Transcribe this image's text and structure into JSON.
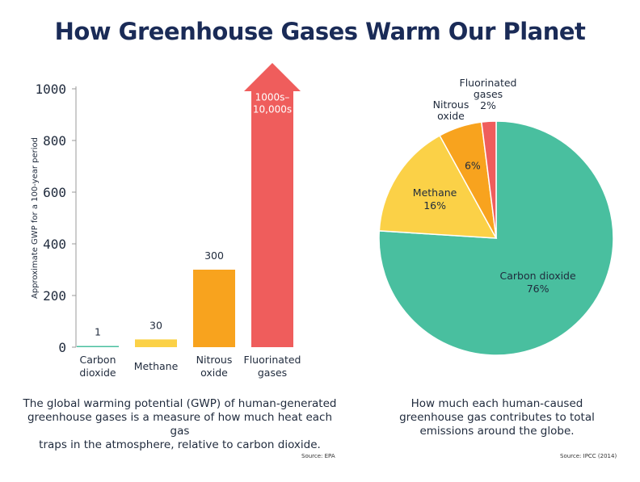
{
  "title": "How Greenhouse Gases Warm Our Planet",
  "colors": {
    "co2": "#49bf9f",
    "methane": "#fbd147",
    "nitrous": "#f8a31e",
    "fluorinated": "#ef5d5c",
    "axis": "#999999",
    "text": "#1f2a3c",
    "title": "#1a2b57"
  },
  "chart_data": [
    {
      "type": "bar",
      "ylabel": "Approximate GWP for a 100-year period",
      "xlabel": "",
      "ylim": [
        0,
        1000
      ],
      "yticks": [
        "0",
        "200",
        "400",
        "600",
        "800",
        "1000"
      ],
      "ytick_values": [
        0,
        200,
        400,
        600,
        800,
        1000
      ],
      "categories": [
        [
          "Carbon",
          "dioxide"
        ],
        [
          "Methane"
        ],
        [
          "Nitrous",
          "oxide"
        ],
        [
          "Fluorinated",
          "gases"
        ]
      ],
      "values": [
        1,
        30,
        300,
        1000
      ],
      "value_labels": [
        [
          "1"
        ],
        [
          "30"
        ],
        [
          "300"
        ],
        [
          "1000s–",
          "10,000s"
        ]
      ],
      "bar_colors": [
        "#49bf9f",
        "#fbd147",
        "#f8a31e",
        "#ef5d5c"
      ],
      "overflow_arrow_on_last": true,
      "caption": [
        "The global warming potential (GWP) of human-generated",
        "greenhouse gases is a measure of how much heat each gas",
        "traps in the atmosphere, relative to carbon dioxide."
      ],
      "source": "Source: EPA"
    },
    {
      "type": "pie",
      "slices": [
        {
          "name": "Carbon dioxide",
          "value": 76,
          "label": [
            "Carbon dioxide",
            "76%"
          ],
          "color": "#49bf9f"
        },
        {
          "name": "Methane",
          "value": 16,
          "label": [
            "Methane",
            "16%"
          ],
          "color": "#fbd147"
        },
        {
          "name": "Nitrous oxide",
          "value": 6,
          "label": [
            "6%"
          ],
          "outside_label": [
            "Nitrous",
            "oxide"
          ],
          "color": "#f8a31e"
        },
        {
          "name": "Fluorinated gases",
          "value": 2,
          "label": [],
          "outside_label": [
            "Fluorinated",
            "gases",
            "2%"
          ],
          "color": "#ef5d5c"
        }
      ],
      "caption": [
        "How much each human-caused",
        "greenhouse gas contributes to total",
        "emissions around the globe."
      ],
      "source": "Source: IPCC (2014)"
    }
  ]
}
